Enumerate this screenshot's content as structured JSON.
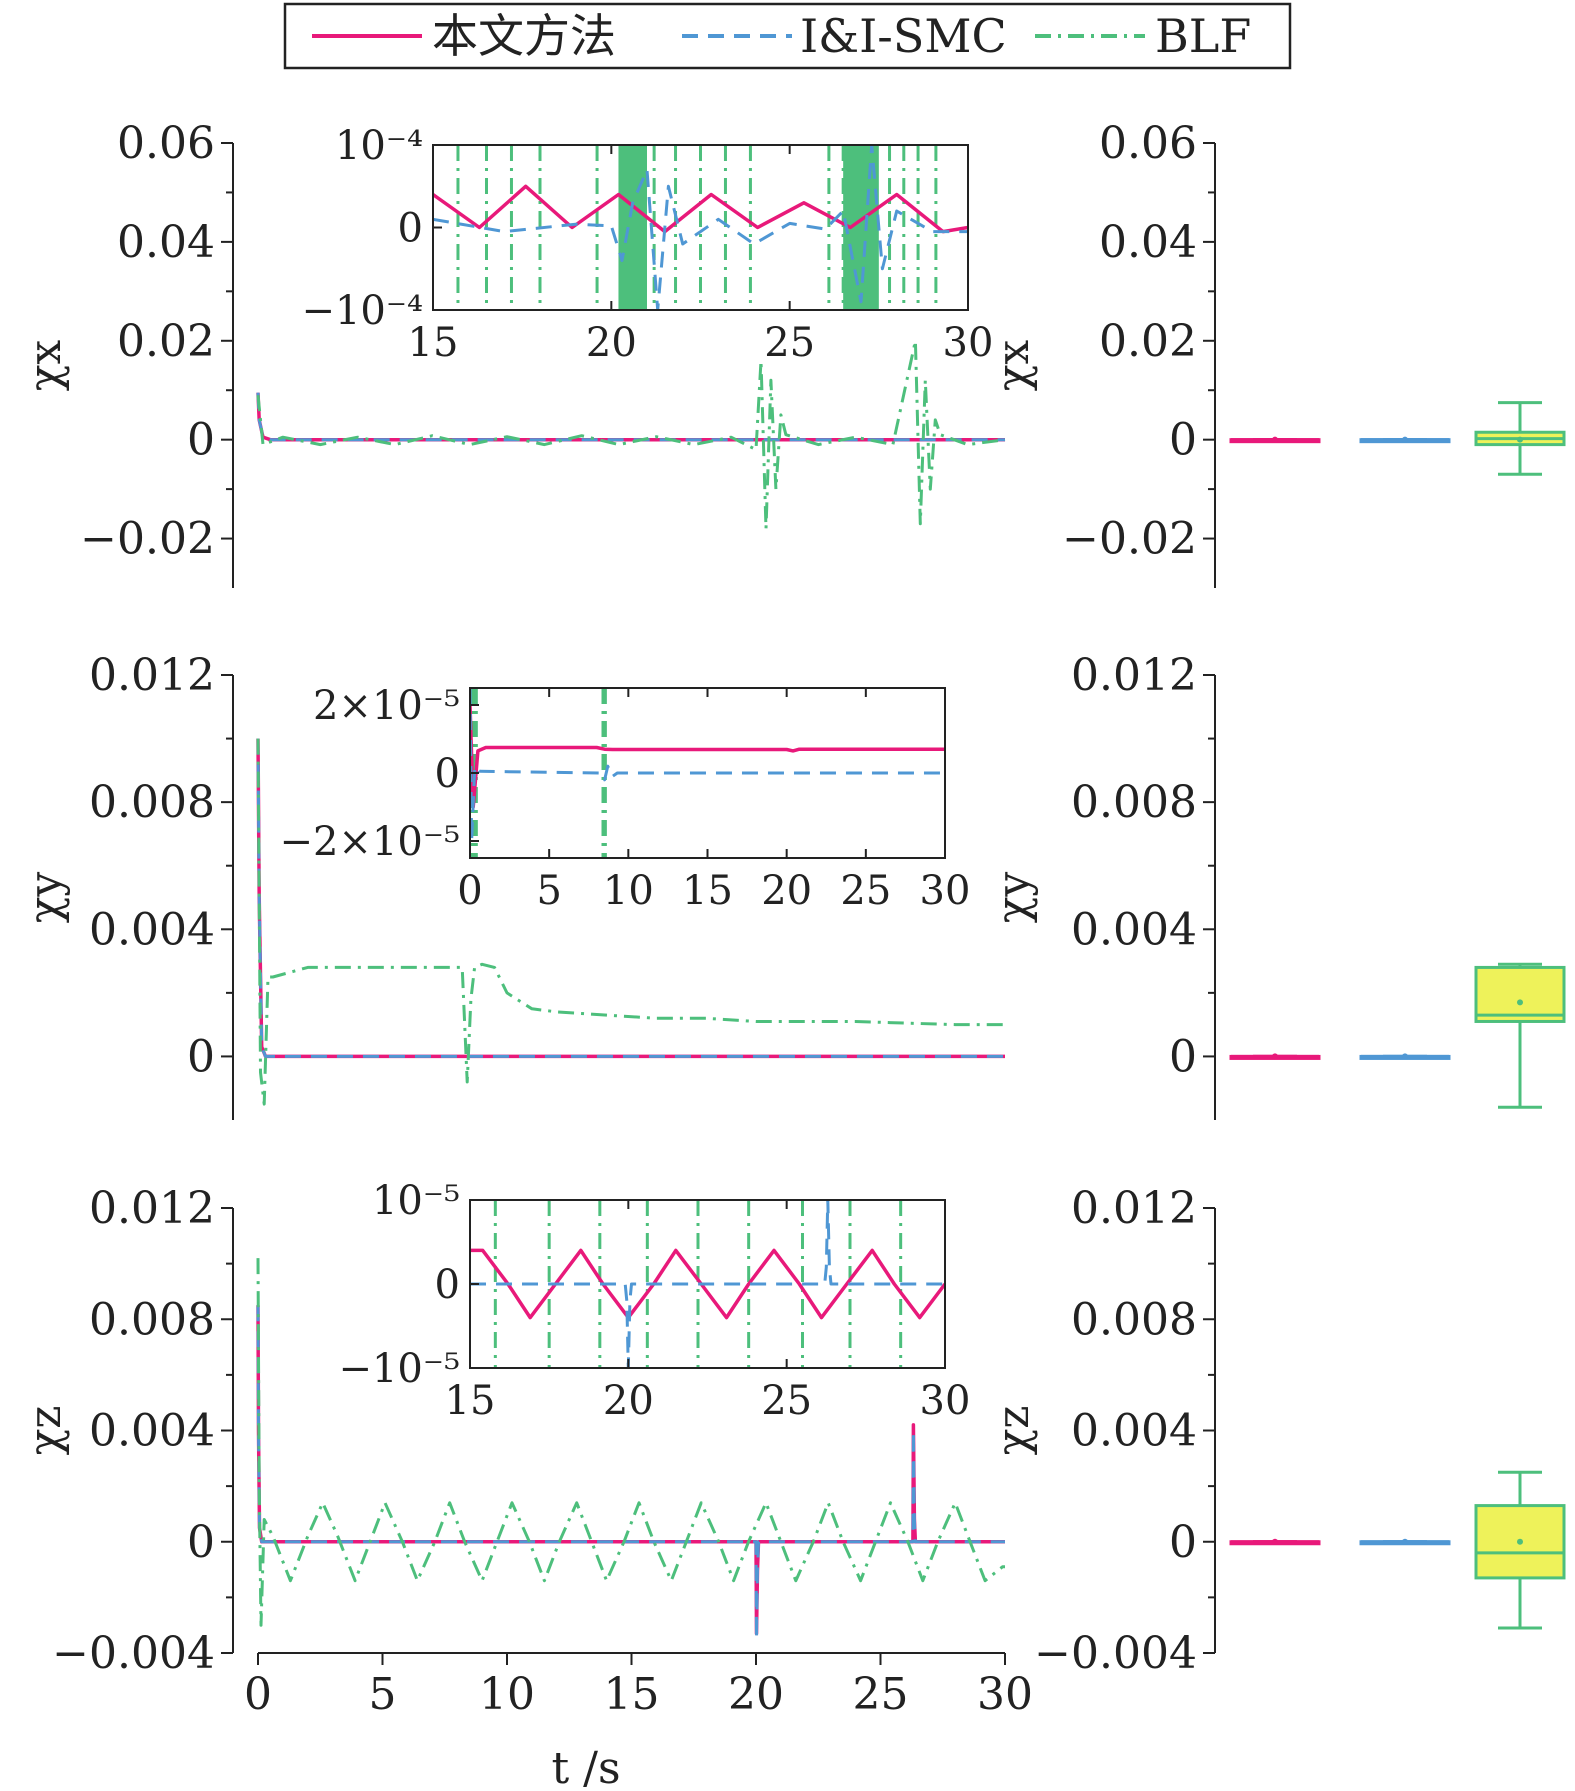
{
  "legend": {
    "position": "top",
    "entries": [
      {
        "label": "本文方法",
        "color": "#e8197a",
        "dash": "solid"
      },
      {
        "label": "I&I-SMC",
        "color": "#4f97d4",
        "dash": "dashed"
      },
      {
        "label": "BLF",
        "color": "#4dbf7c",
        "dash": "dashdot"
      }
    ]
  },
  "colors": {
    "method": "#e8197a",
    "iismc": "#4f97d4",
    "blf": "#4dbf7c",
    "box_fill": "#eef25a",
    "axis": "#222222"
  },
  "xlabel_main": "t /s",
  "chart_data": [
    {
      "id": "chi_x_time",
      "type": "line",
      "ylabel": "χx",
      "xlim": [
        0,
        30
      ],
      "ylim": [
        -0.03,
        0.06
      ],
      "xticks": [
        0,
        5,
        10,
        15,
        20,
        25,
        30
      ],
      "yticks": [
        -0.02,
        0,
        0.02,
        0.04,
        0.06
      ],
      "yticklabels": [
        "−0.02",
        "0",
        "0.02",
        "0.04",
        "0.06"
      ],
      "series": [
        {
          "name": "本文方法",
          "x": [
            0,
            0.05,
            0.2,
            0.5,
            30
          ],
          "y": [
            0.0095,
            0.004,
            0.0005,
            0,
            0
          ]
        },
        {
          "name": "I&I-SMC",
          "x": [
            0,
            0.05,
            0.2,
            0.5,
            30
          ],
          "y": [
            0.0095,
            0.004,
            0.0005,
            0,
            0
          ]
        },
        {
          "name": "BLF",
          "x": [
            0,
            0.2,
            1,
            2.5,
            4,
            5.5,
            7,
            8.5,
            10,
            11.5,
            13,
            14.5,
            16,
            17.5,
            19,
            20,
            20.2,
            20.4,
            20.6,
            20.8,
            21,
            21.2,
            22.5,
            24,
            25.5,
            26.4,
            26.6,
            26.8,
            27,
            27.2,
            27.4,
            28.5,
            30
          ],
          "y": [
            0.009,
            -0.001,
            0.0005,
            -0.001,
            0.0005,
            -0.001,
            0.0008,
            -0.001,
            0.0006,
            -0.001,
            0.0008,
            -0.001,
            0.0006,
            -0.001,
            0.0005,
            -0.002,
            0.016,
            -0.018,
            0.012,
            -0.01,
            0.005,
            0.001,
            -0.001,
            0.0005,
            -0.001,
            0.02,
            -0.017,
            0.012,
            -0.01,
            0.004,
            0.001,
            -0.001,
            0
          ]
        }
      ],
      "inset": {
        "xlim": [
          15,
          30
        ],
        "ylim": [
          -0.0001,
          0.0001
        ],
        "xticks": [
          15,
          20,
          25,
          30
        ],
        "ytick_values": [
          -0.0001,
          0,
          0.0001
        ],
        "yticklabels": [
          "−10⁻⁴",
          "0",
          "10⁻⁴"
        ],
        "series": [
          {
            "name": "本文方法",
            "x": [
              15,
              17,
              19,
              20,
              20.3,
              20.6,
              21,
              21.3,
              21.6,
              22,
              23,
              24,
              25,
              26,
              26.5,
              27,
              27.3,
              27.6,
              28,
              29,
              30
            ],
            "y": [
              1e-05,
              -5e-06,
              4e-06,
              2e-06,
              -4e-05,
              3e-05,
              7e-05,
              -0.0001,
              5e-05,
              -2e-05,
              1e-05,
              -2e-05,
              5e-06,
              -2e-06,
              2e-05,
              -9e-05,
              0.0001,
              -5e-05,
              2e-05,
              -5e-06,
              -5e-06
            ]
          },
          {
            "name": "I&I-SMC",
            "x": [
              15,
              16.3,
              17.6,
              18.9,
              20.2,
              21.5,
              22.8,
              24.1,
              25.4,
              26.7,
              28,
              29.3,
              30
            ],
            "y": [
              4e-05,
              0,
              5e-05,
              0,
              4e-05,
              -5e-06,
              4e-05,
              0,
              3e-05,
              0,
              4e-05,
              -5e-06,
              0
            ]
          },
          {
            "name": "BLF",
            "x": [
              15.7,
              16.5,
              17.2,
              18.0,
              19.6,
              20.3,
              20.6,
              20.9,
              21.2,
              21.8,
              22.5,
              23.2,
              23.9,
              26.1,
              26.5,
              26.8,
              27.1,
              27.4,
              27.8,
              28.2,
              28.6,
              29.1
            ],
            "y": [
              0,
              0,
              0,
              0,
              0,
              0,
              0,
              0,
              0,
              0,
              0,
              0,
              0,
              0,
              0,
              0,
              0,
              0,
              0,
              0,
              0,
              0
            ]
          }
        ]
      }
    },
    {
      "id": "chi_x_box",
      "type": "box",
      "ylabel": "χx",
      "ylim": [
        -0.03,
        0.06
      ],
      "yticks": [
        -0.02,
        0,
        0.02,
        0.04,
        0.06
      ],
      "yticklabels": [
        "−0.02",
        "0",
        "0.02",
        "0.04",
        "0.06"
      ],
      "boxes": [
        {
          "name": "本文方法",
          "min": 0,
          "q1": 0,
          "median": 0,
          "q3": 0,
          "max": 0,
          "mean": 0
        },
        {
          "name": "I&I-SMC",
          "min": 0,
          "q1": 0,
          "median": 0,
          "q3": 0,
          "max": 0,
          "mean": 0
        },
        {
          "name": "BLF",
          "min": -0.007,
          "q1": -0.001,
          "median": 0.0002,
          "q3": 0.0015,
          "max": 0.0075,
          "mean": 0
        }
      ]
    },
    {
      "id": "chi_y_time",
      "type": "line",
      "ylabel": "χy",
      "xlim": [
        0,
        30
      ],
      "ylim": [
        -0.002,
        0.012
      ],
      "xticks": [
        0,
        5,
        10,
        15,
        20,
        25,
        30
      ],
      "yticks": [
        0,
        0.004,
        0.008,
        0.012
      ],
      "yticklabels": [
        "0",
        "0.004",
        "0.008",
        "0.012"
      ],
      "series": [
        {
          "name": "本文方法",
          "x": [
            0,
            0.05,
            0.15,
            0.3,
            30
          ],
          "y": [
            0.01,
            0.005,
            0.0003,
            0,
            0
          ]
        },
        {
          "name": "I&I-SMC",
          "x": [
            0,
            0.05,
            0.15,
            0.3,
            30
          ],
          "y": [
            0.01,
            0.005,
            0.0003,
            0,
            0
          ]
        },
        {
          "name": "BLF",
          "x": [
            0,
            0.1,
            0.25,
            0.4,
            0.6,
            2,
            4,
            6,
            8.2,
            8.4,
            8.55,
            8.7,
            9,
            9.5,
            10,
            11,
            12,
            14,
            16,
            18,
            20,
            22,
            24,
            26,
            28,
            30
          ],
          "y": [
            0.01,
            -0.0005,
            -0.0015,
            0.0025,
            0.0025,
            0.0028,
            0.0028,
            0.0028,
            0.0028,
            -0.0008,
            0.0018,
            0.0028,
            0.0029,
            0.0028,
            0.002,
            0.0015,
            0.0014,
            0.0013,
            0.0012,
            0.0012,
            0.0011,
            0.0011,
            0.0011,
            0.00105,
            0.001,
            0.001
          ]
        }
      ],
      "inset": {
        "xlim": [
          0,
          30
        ],
        "ylim": [
          -2.5e-05,
          2.5e-05
        ],
        "xticks": [
          0,
          5,
          10,
          15,
          20,
          25,
          30
        ],
        "ytick_values": [
          -2e-05,
          0,
          2e-05
        ],
        "yticklabels": [
          "−2×10⁻⁵",
          "0",
          "2×10⁻⁵"
        ],
        "series": [
          {
            "name": "本文方法",
            "x": [
              0,
              0.1,
              0.3,
              0.6,
              8.3,
              8.5,
              8.7,
              9.0,
              9.3,
              30
            ],
            "y": [
              2.5e-05,
              -2e-05,
              2e-06,
              5e-07,
              0,
              -2e-06,
              2e-06,
              -1e-06,
              0,
              0
            ]
          },
          {
            "name": "I&I-SMC",
            "x": [
              0,
              0.2,
              0.5,
              1,
              8,
              8.5,
              9,
              20,
              20.4,
              20.8,
              30
            ],
            "y": [
              2e-05,
              -1e-05,
              6.5e-06,
              7.5e-06,
              7.5e-06,
              7e-06,
              6.9e-06,
              6.9e-06,
              6.5e-06,
              7e-06,
              7e-06
            ]
          },
          {
            "name": "BLF",
            "x": [
              0.1,
              0.25,
              0.4,
              8.4,
              8.55
            ],
            "y": [
              0,
              0,
              0,
              0,
              0
            ]
          }
        ]
      }
    },
    {
      "id": "chi_y_box",
      "type": "box",
      "ylabel": "χy",
      "ylim": [
        -0.002,
        0.012
      ],
      "yticks": [
        0,
        0.004,
        0.008,
        0.012
      ],
      "yticklabels": [
        "0",
        "0.004",
        "0.008",
        "0.012"
      ],
      "boxes": [
        {
          "name": "本文方法",
          "min": 0,
          "q1": 0,
          "median": 0,
          "q3": 0,
          "max": 0,
          "mean": 0
        },
        {
          "name": "I&I-SMC",
          "min": 0,
          "q1": 0,
          "median": 0,
          "q3": 0,
          "max": 0,
          "mean": 0
        },
        {
          "name": "BLF",
          "min": -0.0016,
          "q1": 0.0011,
          "median": 0.0013,
          "q3": 0.0028,
          "max": 0.0029,
          "mean": 0.0017
        }
      ]
    },
    {
      "id": "chi_z_time",
      "type": "line",
      "ylabel": "χz",
      "xlim": [
        0,
        30
      ],
      "ylim": [
        -0.004,
        0.012
      ],
      "xticks": [
        0,
        5,
        10,
        15,
        20,
        25,
        30
      ],
      "xticklabels": [
        "0",
        "5",
        "10",
        "15",
        "20",
        "25",
        "30"
      ],
      "yticks": [
        -0.004,
        0,
        0.004,
        0.008,
        0.012
      ],
      "yticklabels": [
        "−0.004",
        "0",
        "0.004",
        "0.008",
        "0.012"
      ],
      "series": [
        {
          "name": "本文方法",
          "x": [
            0,
            0.02,
            0.06,
            0.15,
            20,
            20.02,
            20.06,
            20.1,
            26.3,
            26.32,
            26.36,
            26.4,
            30
          ],
          "y": [
            0.0085,
            0.004,
            0.0005,
            0,
            0,
            -0.0033,
            -0.001,
            0,
            0,
            0.0042,
            0.0008,
            0,
            0
          ]
        },
        {
          "name": "I&I-SMC",
          "x": [
            0,
            0.02,
            0.06,
            0.15,
            20,
            20.02,
            20.06,
            20.1,
            26.3,
            26.32,
            26.36,
            26.4,
            30
          ],
          "y": [
            0.0085,
            0.004,
            0.0005,
            0,
            0,
            -0.0035,
            -0.001,
            0,
            0,
            0.004,
            0.0008,
            0,
            0
          ]
        },
        {
          "name": "BLF",
          "x": [
            0,
            0.05,
            0.12,
            0.25,
            0.6,
            1.3,
            2,
            2.6,
            3.2,
            3.9,
            4.5,
            5.1,
            5.8,
            6.4,
            7.1,
            7.7,
            8.3,
            9.0,
            9.6,
            10.2,
            10.9,
            11.5,
            12.1,
            12.8,
            13.4,
            14.0,
            14.7,
            15.3,
            15.9,
            16.6,
            17.2,
            17.8,
            18.5,
            19.1,
            19.7,
            20.4,
            21.0,
            21.6,
            22.3,
            22.9,
            23.5,
            24.2,
            24.8,
            25.4,
            26.1,
            26.7,
            27.3,
            28.0,
            28.6,
            29.2,
            29.9,
            30
          ],
          "y": [
            0.0102,
            0.002,
            -0.003,
            0.0008,
            0.0002,
            -0.0014,
            0.0002,
            0.0014,
            0.0002,
            -0.0014,
            0,
            0.0014,
            0,
            -0.0014,
            0,
            0.0014,
            0,
            -0.0014,
            0,
            0.0014,
            0,
            -0.0014,
            0,
            0.0014,
            0,
            -0.0014,
            0,
            0.0014,
            0,
            -0.0014,
            0,
            0.0014,
            0,
            -0.0014,
            0,
            0.0014,
            0,
            -0.0014,
            0,
            0.0014,
            0,
            -0.0014,
            0,
            0.0014,
            0,
            -0.0014,
            0,
            0.0014,
            0,
            -0.0014,
            -0.0009,
            -0.0009
          ]
        }
      ],
      "inset": {
        "xlim": [
          15,
          30
        ],
        "ylim": [
          -1e-05,
          1e-05
        ],
        "xticks": [
          15,
          20,
          25,
          30
        ],
        "ytick_values": [
          -1e-05,
          0,
          1e-05
        ],
        "yticklabels": [
          "−10⁻⁵",
          "0",
          "10⁻⁵"
        ],
        "series": [
          {
            "name": "本文方法",
            "x": [
              15,
              19.9,
              19.95,
              20.0,
              20.05,
              20.1,
              26.2,
              26.25,
              26.3,
              26.35,
              26.4,
              30
            ],
            "y": [
              0,
              0,
              -2e-06,
              -1e-05,
              -2e-06,
              0,
              0,
              2e-06,
              1e-05,
              2e-06,
              0,
              0
            ]
          },
          {
            "name": "I&I-SMC",
            "x": [
              15,
              15.4,
              16.2,
              16.9,
              17.7,
              18.5,
              19.2,
              20.0,
              20.8,
              21.5,
              22.3,
              23.1,
              23.8,
              24.6,
              25.4,
              26.1,
              26.9,
              27.7,
              28.4,
              29.2,
              30
            ],
            "y": [
              4e-06,
              4e-06,
              0,
              -4e-06,
              0,
              4e-06,
              0,
              -4e-06,
              0,
              4e-06,
              0,
              -4e-06,
              0,
              4e-06,
              0,
              -4e-06,
              0,
              4e-06,
              0,
              -4e-06,
              0
            ]
          },
          {
            "name": "BLF",
            "x": [
              15.8,
              17.5,
              19.1,
              20.6,
              22.2,
              23.8,
              25.5,
              27.0,
              28.6
            ],
            "y": [
              0,
              0,
              0,
              0,
              0,
              0,
              0,
              0,
              0
            ]
          }
        ]
      }
    },
    {
      "id": "chi_z_box",
      "type": "box",
      "ylabel": "χz",
      "ylim": [
        -0.004,
        0.012
      ],
      "yticks": [
        -0.004,
        0,
        0.004,
        0.008,
        0.012
      ],
      "yticklabels": [
        "−0.004",
        "0",
        "0.004",
        "0.008",
        "0.012"
      ],
      "boxes": [
        {
          "name": "本文方法",
          "min": 0,
          "q1": 0,
          "median": 0,
          "q3": 0,
          "max": 0,
          "mean": 0
        },
        {
          "name": "I&I-SMC",
          "min": 0,
          "q1": 0,
          "median": 0,
          "q3": 0,
          "max": 0,
          "mean": 0
        },
        {
          "name": "BLF",
          "min": -0.0031,
          "q1": -0.0013,
          "median": -0.0004,
          "q3": 0.0013,
          "max": 0.0025,
          "mean": 0
        }
      ]
    }
  ]
}
